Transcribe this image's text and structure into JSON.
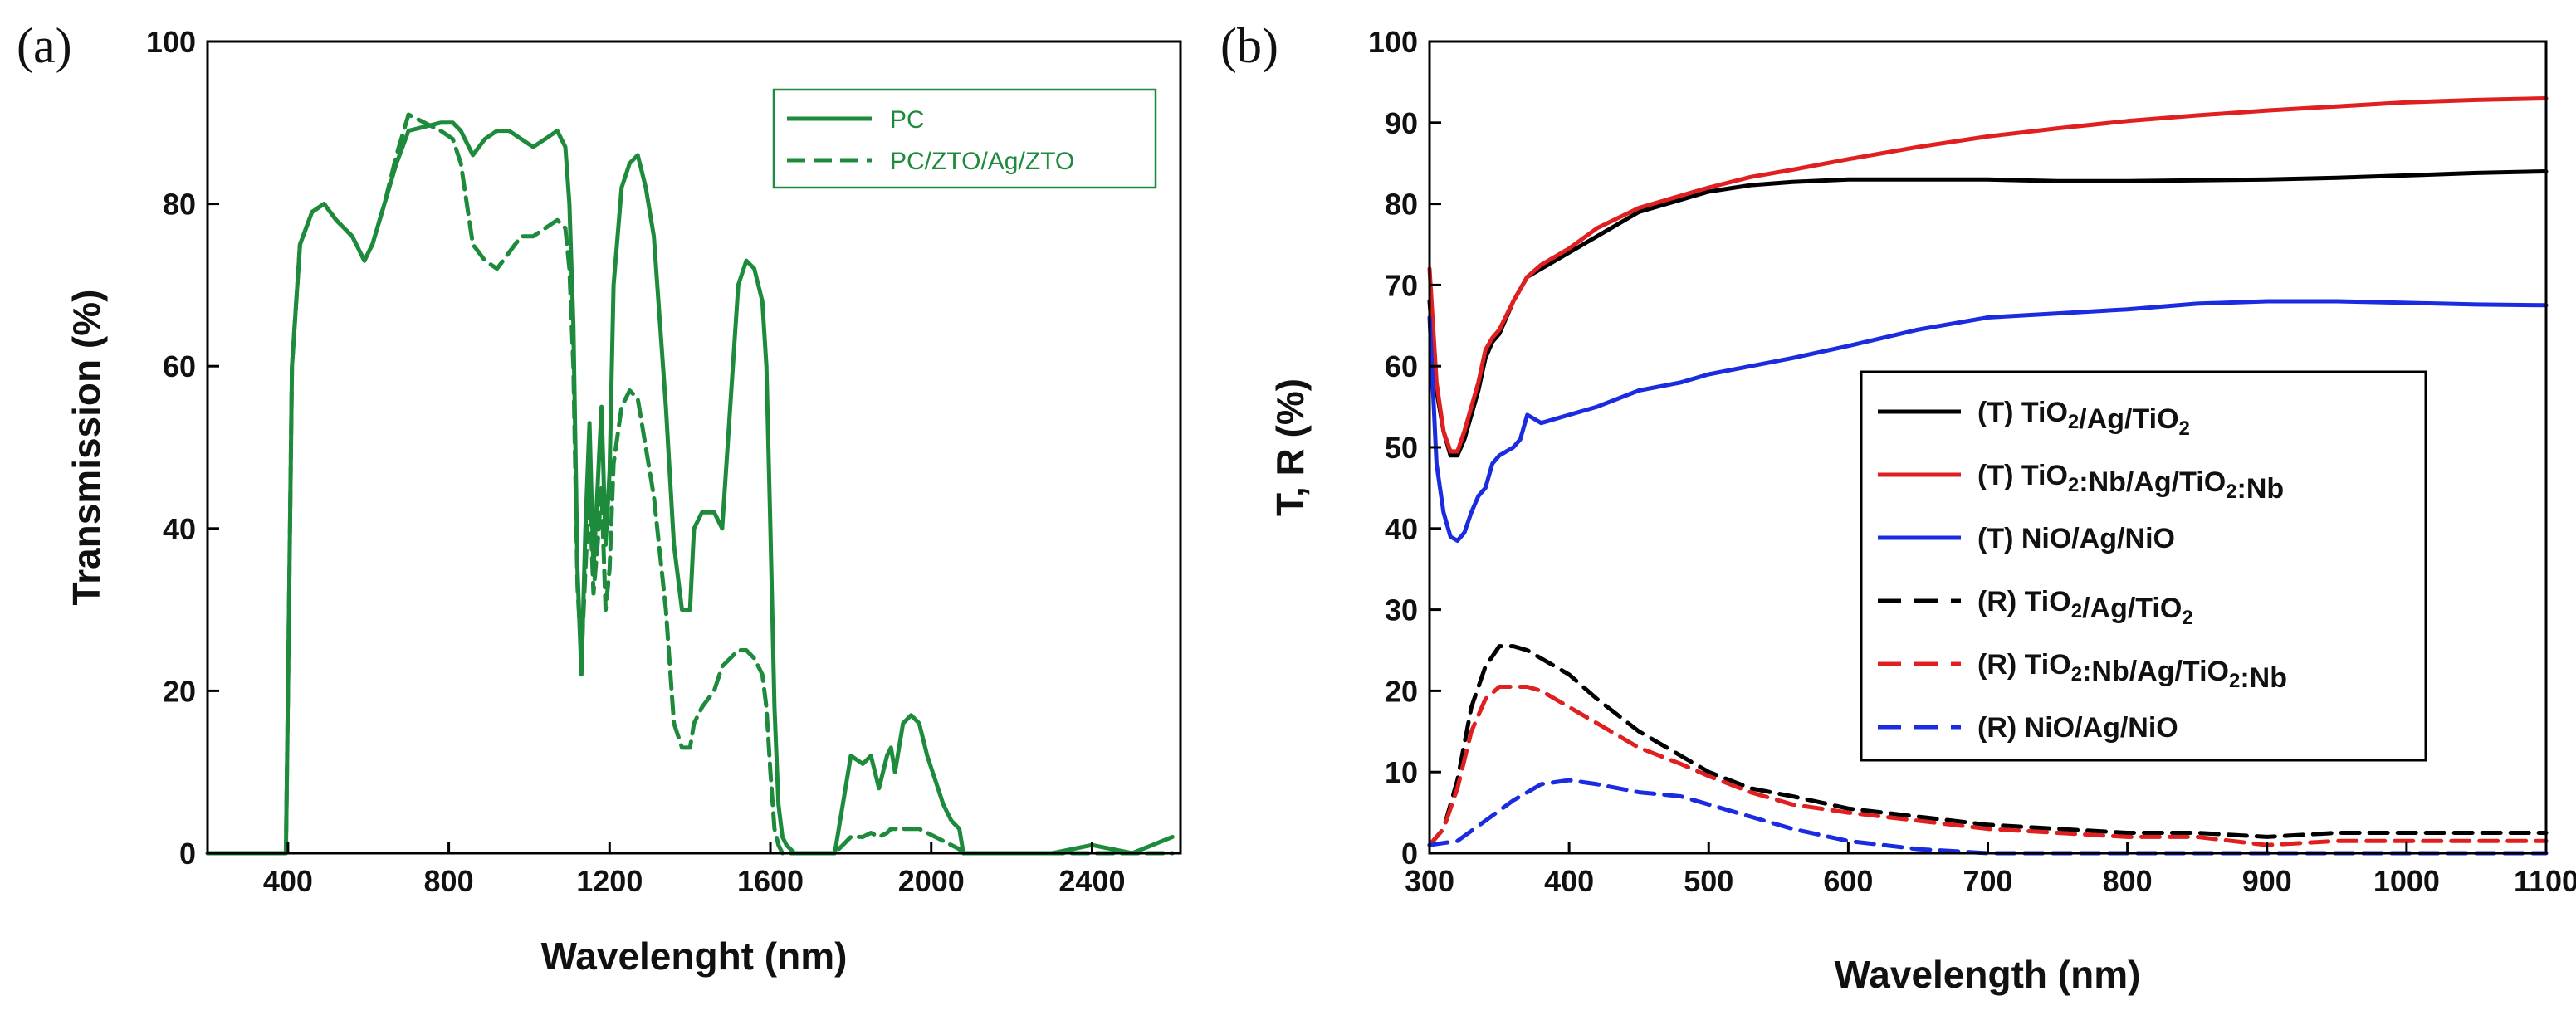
{
  "chart_data": [
    {
      "type": "line",
      "panel_label": "(a)",
      "xlabel": "Wavelenght (nm)",
      "ylabel": "Transmission (%)",
      "xlim": [
        200,
        2620
      ],
      "ylim": [
        0,
        100
      ],
      "xticks": [
        "400",
        "800",
        "1200",
        "1600",
        "2000",
        "2400"
      ],
      "xtick_values": [
        400,
        800,
        1200,
        1600,
        2000,
        2400
      ],
      "yticks": [
        "0",
        "20",
        "40",
        "60",
        "80",
        "100"
      ],
      "ytick_values": [
        0,
        20,
        40,
        60,
        80,
        100
      ],
      "legend_position": "top-right",
      "series": [
        {
          "name": "PC",
          "color": "#1d8a3c",
          "dash": "solid",
          "x": [
            200,
            395,
            400,
            410,
            430,
            460,
            490,
            520,
            560,
            590,
            610,
            640,
            670,
            700,
            740,
            780,
            810,
            830,
            860,
            890,
            920,
            950,
            980,
            1010,
            1040,
            1070,
            1090,
            1100,
            1110,
            1120,
            1130,
            1140,
            1150,
            1160,
            1170,
            1180,
            1190,
            1200,
            1210,
            1230,
            1250,
            1270,
            1290,
            1310,
            1340,
            1360,
            1380,
            1400,
            1410,
            1430,
            1460,
            1480,
            1500,
            1520,
            1540,
            1560,
            1580,
            1590,
            1600,
            1610,
            1620,
            1630,
            1640,
            1660,
            1700,
            1760,
            1780,
            1800,
            1830,
            1850,
            1870,
            1890,
            1900,
            1910,
            1930,
            1950,
            1970,
            1990,
            2010,
            2030,
            2050,
            2070,
            2080,
            2100,
            2200,
            2300,
            2400,
            2500,
            2600
          ],
          "y": [
            0,
            0,
            20,
            60,
            75,
            79,
            80,
            78,
            76,
            73,
            75,
            80,
            85,
            89,
            89.5,
            90,
            90,
            89,
            86,
            88,
            89,
            89,
            88,
            87,
            88,
            89,
            87,
            80,
            65,
            35,
            22,
            40,
            53,
            35,
            45,
            55,
            38,
            47,
            70,
            82,
            85,
            86,
            82,
            76,
            55,
            38,
            30,
            30,
            40,
            42,
            42,
            40,
            55,
            70,
            73,
            72,
            68,
            60,
            40,
            18,
            6,
            2,
            1,
            0,
            0,
            0,
            6,
            12,
            11,
            12,
            8,
            12,
            13,
            10,
            16,
            17,
            16,
            12,
            9,
            6,
            4,
            3,
            0,
            0,
            0,
            0,
            1,
            0,
            2
          ]
        },
        {
          "name": "PC/ZTO/Ag/ZTO",
          "color": "#1d8a3c",
          "dash": "dashed",
          "x": [
            200,
            395,
            400,
            410,
            430,
            460,
            490,
            520,
            560,
            590,
            610,
            640,
            670,
            700,
            740,
            780,
            810,
            830,
            860,
            890,
            920,
            950,
            980,
            1010,
            1040,
            1070,
            1090,
            1100,
            1110,
            1120,
            1130,
            1140,
            1150,
            1160,
            1170,
            1180,
            1190,
            1200,
            1210,
            1230,
            1250,
            1270,
            1290,
            1310,
            1340,
            1360,
            1380,
            1400,
            1410,
            1430,
            1460,
            1480,
            1500,
            1520,
            1540,
            1560,
            1580,
            1590,
            1600,
            1610,
            1620,
            1630,
            1640,
            1660,
            1700,
            1760,
            1780,
            1800,
            1830,
            1850,
            1870,
            1890,
            1900,
            1910,
            1930,
            1950,
            1970,
            1990,
            2010,
            2030,
            2050,
            2070,
            2080,
            2100,
            2200,
            2300,
            2400,
            2500,
            2600
          ],
          "y": [
            0,
            0,
            20,
            60,
            75,
            79,
            80,
            78,
            76,
            73,
            75,
            80,
            86,
            91,
            90,
            89,
            88,
            85,
            75,
            73,
            72,
            74,
            76,
            76,
            77,
            78,
            77,
            72,
            60,
            33,
            24,
            35,
            45,
            32,
            38,
            45,
            30,
            35,
            48,
            55,
            57,
            56,
            50,
            44,
            30,
            16,
            13,
            13,
            16,
            18,
            20,
            23,
            24,
            25,
            25,
            24,
            22,
            18,
            10,
            3,
            1,
            0,
            0,
            0,
            0,
            0,
            1,
            2,
            2,
            2.5,
            2,
            2.5,
            3,
            3,
            3,
            3,
            3,
            2.5,
            2,
            1.5,
            1,
            0.5,
            0,
            0,
            0,
            0,
            0,
            0,
            0
          ]
        }
      ]
    },
    {
      "type": "line",
      "panel_label": "(b)",
      "xlabel": "Wavelength (nm)",
      "ylabel": "T, R (%)",
      "xlim": [
        300,
        1100
      ],
      "ylim": [
        0,
        100
      ],
      "xticks": [
        "300",
        "400",
        "500",
        "600",
        "700",
        "800",
        "900",
        "1000",
        "1100"
      ],
      "xtick_values": [
        300,
        400,
        500,
        600,
        700,
        800,
        900,
        1000,
        1100
      ],
      "yticks": [
        "0",
        "10",
        "20",
        "30",
        "40",
        "50",
        "60",
        "70",
        "80",
        "90",
        "100"
      ],
      "ytick_values": [
        0,
        10,
        20,
        30,
        40,
        50,
        60,
        70,
        80,
        90,
        100
      ],
      "legend_position": "center-right",
      "series": [
        {
          "name": "(T) TiO2/Ag/TiO2",
          "label_main": "(T) TiO",
          "label_sub1": "2",
          "label_mid": "/Ag/TiO",
          "label_sub2": "2",
          "label_end": "",
          "color": "#000000",
          "dash": "solid",
          "x": [
            300,
            305,
            310,
            315,
            320,
            325,
            330,
            335,
            340,
            345,
            350,
            360,
            370,
            380,
            400,
            420,
            450,
            480,
            500,
            530,
            560,
            600,
            650,
            700,
            750,
            800,
            850,
            900,
            950,
            1000,
            1050,
            1100
          ],
          "y": [
            68,
            57,
            52,
            49,
            49,
            51,
            54,
            57,
            61,
            63,
            64,
            68,
            71,
            72,
            74,
            76,
            79,
            80.5,
            81.5,
            82.3,
            82.7,
            83,
            83,
            83,
            82.8,
            82.8,
            82.9,
            83,
            83.2,
            83.5,
            83.8,
            84
          ]
        },
        {
          "name": "(T) TiO2:Nb/Ag/TiO2:Nb",
          "label_main": "(T) TiO",
          "label_sub1": "2",
          "label_mid": ":Nb/Ag/TiO",
          "label_sub2": "2",
          "label_end": ":Nb",
          "color": "#e02020",
          "dash": "solid",
          "x": [
            300,
            305,
            310,
            315,
            320,
            325,
            330,
            335,
            340,
            345,
            350,
            360,
            370,
            380,
            400,
            420,
            450,
            480,
            500,
            530,
            560,
            600,
            650,
            700,
            750,
            800,
            850,
            900,
            950,
            1000,
            1050,
            1100
          ],
          "y": [
            72,
            58,
            52,
            49.5,
            49.5,
            52,
            55,
            58,
            62,
            63.5,
            64.5,
            68,
            71,
            72.5,
            74.5,
            77,
            79.5,
            81,
            82,
            83.3,
            84.2,
            85.5,
            87,
            88.3,
            89.3,
            90.2,
            90.9,
            91.5,
            92,
            92.5,
            92.8,
            93
          ]
        },
        {
          "name": "(T) NiO/Ag/NiO",
          "label_main": "(T) NiO/Ag/NiO",
          "label_sub1": "",
          "label_mid": "",
          "label_sub2": "",
          "label_end": "",
          "color": "#1a2be0",
          "dash": "solid",
          "x": [
            300,
            305,
            310,
            315,
            320,
            325,
            330,
            335,
            340,
            345,
            350,
            360,
            365,
            370,
            380,
            400,
            420,
            450,
            480,
            500,
            530,
            560,
            600,
            650,
            700,
            750,
            800,
            850,
            900,
            950,
            1000,
            1050,
            1100
          ],
          "y": [
            66,
            48,
            42,
            39,
            38.5,
            39.5,
            42,
            44,
            45,
            48,
            49,
            50,
            51,
            54,
            53,
            54,
            55,
            57,
            58,
            59,
            60,
            61,
            62.5,
            64.5,
            66,
            66.5,
            67,
            67.7,
            68,
            68,
            67.8,
            67.6,
            67.5
          ]
        },
        {
          "name": "(R) TiO2/Ag/TiO2",
          "label_main": "(R) TiO",
          "label_sub1": "2",
          "label_mid": "/Ag/TiO",
          "label_sub2": "2",
          "label_end": "",
          "color": "#000000",
          "dash": "dashed",
          "x": [
            300,
            310,
            320,
            330,
            340,
            350,
            360,
            370,
            380,
            400,
            420,
            450,
            480,
            500,
            530,
            560,
            600,
            650,
            700,
            750,
            800,
            850,
            900,
            950,
            1000,
            1050,
            1100
          ],
          "y": [
            1,
            3,
            9,
            18,
            23,
            25.5,
            25.5,
            25,
            24,
            22,
            19,
            15,
            12,
            10,
            8,
            7,
            5.5,
            4.5,
            3.5,
            3,
            2.5,
            2.5,
            2,
            2.5,
            2.5,
            2.5,
            2.5
          ]
        },
        {
          "name": "(R) TiO2:Nb/Ag/TiO2:Nb",
          "label_main": "(R) TiO",
          "label_sub1": "2",
          "label_mid": ":Nb/Ag/TiO",
          "label_sub2": "2",
          "label_end": ":Nb",
          "color": "#e02020",
          "dash": "dashed",
          "x": [
            300,
            310,
            320,
            330,
            340,
            350,
            360,
            370,
            380,
            400,
            420,
            450,
            480,
            500,
            530,
            560,
            600,
            650,
            700,
            750,
            800,
            850,
            900,
            950,
            1000,
            1050,
            1100
          ],
          "y": [
            1,
            3,
            8,
            15,
            19,
            20.5,
            20.5,
            20.5,
            20,
            18,
            16,
            13,
            11,
            9.5,
            7.5,
            6,
            5,
            4,
            3,
            2.5,
            2,
            2,
            1,
            1.5,
            1.5,
            1.5,
            1.5
          ]
        },
        {
          "name": "(R) NiO/Ag/NiO",
          "label_main": "(R) NiO/Ag/NiO",
          "label_sub1": "",
          "label_mid": "",
          "label_sub2": "",
          "label_end": "",
          "color": "#1a2be0",
          "dash": "dashed",
          "x": [
            300,
            320,
            340,
            360,
            380,
            400,
            420,
            450,
            480,
            500,
            530,
            560,
            600,
            650,
            700,
            750,
            800,
            850,
            900,
            950,
            1000,
            1050,
            1100
          ],
          "y": [
            1,
            1.5,
            4,
            6.5,
            8.5,
            9,
            8.5,
            7.5,
            7,
            6,
            4.5,
            3,
            1.5,
            0.5,
            0,
            0,
            0,
            0,
            0,
            0,
            0,
            0,
            0
          ]
        }
      ]
    }
  ]
}
